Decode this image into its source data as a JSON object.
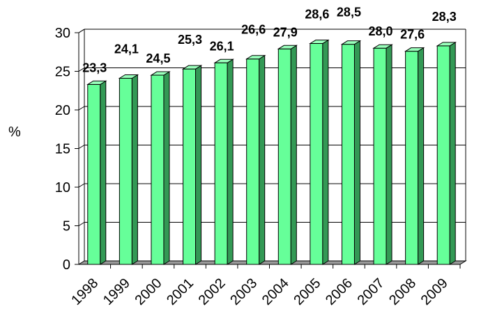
{
  "chart_data": {
    "type": "bar",
    "title": "",
    "xlabel": "",
    "ylabel": "%",
    "categories": [
      "1998",
      "1999",
      "2000",
      "2001",
      "2002",
      "2003",
      "2004",
      "2005",
      "2006",
      "2007",
      "2008",
      "2009"
    ],
    "values": [
      23.3,
      24.1,
      24.5,
      25.3,
      26.1,
      26.6,
      27.9,
      28.6,
      28.5,
      28.0,
      27.6,
      28.3
    ],
    "value_labels": [
      "23,3",
      "24,1",
      "24,5",
      "25,3",
      "26,1",
      "26,6",
      "27,9",
      "28,6",
      "28,5",
      "28,0",
      "27,6",
      "28,3"
    ],
    "ylim": [
      0,
      30
    ],
    "yticks": [
      0,
      5,
      10,
      15,
      20,
      25,
      30
    ],
    "ytick_labels": [
      "0",
      "5",
      "10",
      "15",
      "20",
      "25",
      "30"
    ],
    "grid": true,
    "legend": false,
    "bar_color": "#66ff99",
    "bar_side_color": "#339955",
    "bar_top_color": "#99ffbb",
    "floor_color": "#9a9a9a",
    "gridline_color": "#000000"
  }
}
